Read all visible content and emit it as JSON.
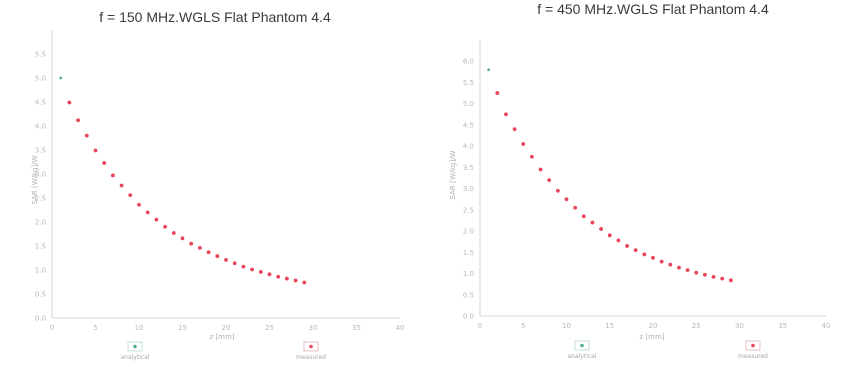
{
  "colors": {
    "measured": "#e8455a",
    "analytical": "#4fae8d",
    "axis": "#d6d6d6",
    "tick": "#b9b9b9"
  },
  "chart_data": [
    {
      "type": "scatter",
      "title": "f = 150 MHz.WGLS Flat Phantom 4.4",
      "xlabel": "z [mm]",
      "ylabel": "SAR [W/kg]/W",
      "xlim": [
        0,
        40
      ],
      "ylim": [
        0,
        6.0
      ],
      "x_ticks": [
        "0",
        "5",
        "10",
        "15",
        "20",
        "25",
        "30",
        "35",
        "40"
      ],
      "y_ticks": [
        "0.0",
        "0.5",
        "1.0",
        "1.5",
        "2.0",
        "2.5",
        "3.0",
        "3.5",
        "4.0",
        "4.5",
        "5.0",
        "5.5"
      ],
      "legend": [
        "analytical",
        "measured"
      ],
      "series": [
        {
          "name": "analytical",
          "x": [
            1
          ],
          "y": [
            5.0
          ]
        },
        {
          "name": "measured",
          "x": [
            2,
            3,
            4,
            5,
            6,
            7,
            8,
            9,
            10,
            11,
            12,
            13,
            14,
            15,
            16,
            17,
            18,
            19,
            20,
            21,
            22,
            23,
            24,
            25,
            26,
            27,
            28,
            29
          ],
          "y": [
            4.49,
            4.12,
            3.8,
            3.49,
            3.23,
            2.97,
            2.76,
            2.56,
            2.36,
            2.2,
            2.05,
            1.9,
            1.77,
            1.66,
            1.55,
            1.46,
            1.37,
            1.29,
            1.21,
            1.14,
            1.07,
            1.01,
            0.96,
            0.91,
            0.86,
            0.82,
            0.78,
            0.74
          ]
        }
      ]
    },
    {
      "type": "scatter",
      "title": "f = 450 MHz.WGLS Flat Phantom 4.4",
      "xlabel": "z [mm]",
      "ylabel": "SAR [W/kg]/W",
      "xlim": [
        0,
        40
      ],
      "ylim": [
        0,
        6.5
      ],
      "x_ticks": [
        "0",
        "5",
        "10",
        "15",
        "20",
        "25",
        "30",
        "35",
        "40"
      ],
      "y_ticks": [
        "0.0",
        "0.5",
        "1.0",
        "1.5",
        "2.0",
        "2.5",
        "3.0",
        "3.5",
        "4.0",
        "4.5",
        "5.0",
        "5.5",
        "6.0"
      ],
      "legend": [
        "analytical",
        "measured"
      ],
      "series": [
        {
          "name": "analytical",
          "x": [
            1
          ],
          "y": [
            5.8
          ]
        },
        {
          "name": "measured",
          "x": [
            2,
            3,
            4,
            5,
            6,
            7,
            8,
            9,
            10,
            11,
            12,
            13,
            14,
            15,
            16,
            17,
            18,
            19,
            20,
            21,
            22,
            23,
            24,
            25,
            26,
            27,
            28,
            29
          ],
          "y": [
            5.25,
            4.75,
            4.4,
            4.05,
            3.75,
            3.45,
            3.2,
            2.95,
            2.75,
            2.55,
            2.35,
            2.2,
            2.05,
            1.9,
            1.78,
            1.65,
            1.55,
            1.45,
            1.37,
            1.28,
            1.21,
            1.14,
            1.08,
            1.02,
            0.97,
            0.92,
            0.88,
            0.84
          ]
        }
      ]
    }
  ]
}
